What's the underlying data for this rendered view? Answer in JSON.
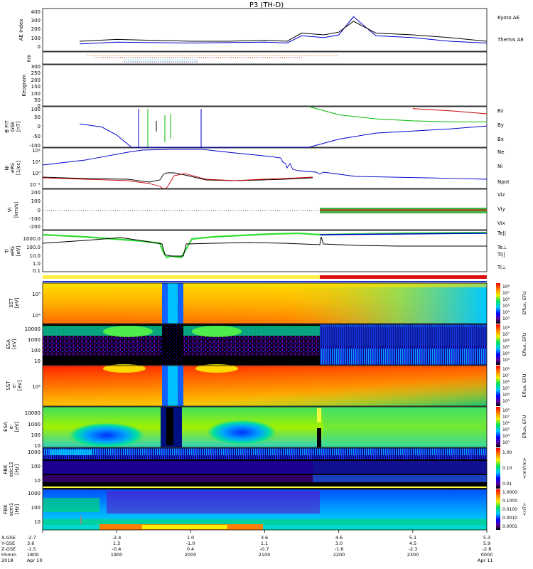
{
  "title": "P3 (TH-D)",
  "chart_data": [
    {
      "type": "line",
      "panel": "ae",
      "ylabel": "AE Index",
      "yticks": [
        "400",
        "300",
        "200",
        "100",
        "0"
      ],
      "ylim": [
        -50,
        420
      ],
      "x": [
        18.5,
        19.0,
        19.5,
        20.0,
        20.5,
        21.0,
        21.3,
        21.5,
        21.8,
        22.0,
        22.2,
        22.5,
        23.0,
        23.5,
        24.0
      ],
      "series": [
        {
          "name": "Kyoto AE",
          "color": "#0000cc",
          "values": [
            30,
            50,
            45,
            40,
            45,
            50,
            40,
            120,
            100,
            130,
            330,
            120,
            100,
            60,
            40
          ]
        },
        {
          "name": "Themis AE",
          "color": "#000000",
          "values": [
            60,
            80,
            70,
            60,
            60,
            70,
            60,
            150,
            130,
            160,
            280,
            150,
            130,
            100,
            60
          ]
        }
      ]
    },
    {
      "type": "line",
      "panel": "roi",
      "ylabel": "ROI",
      "series": [
        {
          "name": "roi-orange",
          "color": "#ff6600",
          "range": [
            18.6,
            22.0
          ]
        },
        {
          "name": "roi-red",
          "color": "#cc0000",
          "range": [
            18.7,
            21.5
          ]
        },
        {
          "name": "roi-cyan",
          "color": "#00cccc",
          "range": [
            19.1,
            20.1
          ]
        },
        {
          "name": "roi-blue",
          "color": "#000099",
          "range": [
            19.1,
            20.1
          ]
        }
      ]
    },
    {
      "type": "line",
      "panel": "keogram",
      "ylabel": "Keogram",
      "yticks": [
        "300",
        "250",
        "200",
        "150",
        "100",
        "50",
        "0"
      ],
      "ylim": [
        0,
        300
      ]
    },
    {
      "type": "line",
      "panel": "bfield",
      "ylabel": [
        "B FIT",
        "GSE",
        "[nT]"
      ],
      "yticks": [
        "100",
        "50",
        "0",
        "-50",
        "-100"
      ],
      "ylim": [
        -100,
        100
      ],
      "x": [
        18.5,
        18.8,
        19.0,
        19.2,
        19.5,
        19.9,
        20.1,
        20.5,
        21.0,
        21.3,
        21.6,
        22.0,
        22.5,
        23.0,
        23.5,
        24.0
      ],
      "series": [
        {
          "name": "Bz",
          "color": "#cc0000",
          "values": [
            null,
            null,
            null,
            null,
            null,
            null,
            null,
            null,
            null,
            null,
            null,
            null,
            null,
            90,
            80,
            65
          ]
        },
        {
          "name": "By",
          "color": "#00bb00",
          "values": [
            null,
            null,
            null,
            null,
            null,
            null,
            null,
            null,
            null,
            null,
            100,
            60,
            40,
            30,
            25,
            25
          ]
        },
        {
          "name": "Bx",
          "color": "#0000cc",
          "values": [
            15,
            0,
            -40,
            -100,
            -100,
            -100,
            -100,
            -100,
            -100,
            -100,
            -100,
            -60,
            -30,
            -20,
            -10,
            5
          ]
        }
      ]
    },
    {
      "type": "line",
      "panel": "density",
      "ylabel": [
        "Ni",
        "ePG",
        "[1/cc]"
      ],
      "yticks": [
        "10²",
        "10¹",
        "10⁰",
        "10⁻¹"
      ],
      "series": [
        {
          "name": "Ne",
          "color": "#cc0000"
        },
        {
          "name": "Ni",
          "color": "#000000"
        },
        {
          "name": "Npot",
          "color": "#0000cc"
        }
      ]
    },
    {
      "type": "line",
      "panel": "velocity",
      "ylabel": [
        "Vi",
        "[km/s]"
      ],
      "yticks": [
        "200",
        "100",
        "0",
        "-100",
        "-200"
      ],
      "ylim": [
        -300,
        300
      ],
      "series": [
        {
          "name": "Viz",
          "color": "#cc0000"
        },
        {
          "name": "Viy",
          "color": "#00bb00"
        },
        {
          "name": "Vix",
          "color": "#0000cc"
        }
      ]
    },
    {
      "type": "line",
      "panel": "temperature",
      "ylabel": [
        "Ti",
        "ePG",
        "[eV]"
      ],
      "yticks": [
        "1000.0",
        "100.0",
        "10.0",
        "1.0",
        "0.1"
      ],
      "series": [
        {
          "name": "Te||",
          "color": "#000000"
        },
        {
          "name": "Te⊥",
          "color": "#cc0000"
        },
        {
          "name": "Ti||",
          "color": "#00bb00"
        },
        {
          "name": "Ti⊥",
          "color": "#0000cc"
        }
      ]
    },
    {
      "type": "heatmap",
      "panel": "sst-ion",
      "ylabel": [
        "SST",
        "[eV]"
      ],
      "yticks": [
        "10⁵",
        "10⁴"
      ],
      "colorbar_label": "Eflux, EFU",
      "colorbar_ticks": [
        "10⁸",
        "10⁷",
        "10⁶",
        "10⁵",
        "10⁴",
        "10³"
      ]
    },
    {
      "type": "heatmap",
      "panel": "esa-ion",
      "ylabel": [
        "ESA",
        "[eV]"
      ],
      "yticks": [
        "10000",
        "1000",
        "100",
        "10"
      ],
      "colorbar_label": "Eflux, EFU",
      "colorbar_ticks": [
        "10⁸",
        "10⁷",
        "10⁶",
        "10⁵",
        "10⁴",
        "10³"
      ]
    },
    {
      "type": "heatmap",
      "panel": "sst-electron",
      "ylabel": [
        "SST",
        "e-",
        "[eV]"
      ],
      "yticks": [
        "10⁵"
      ],
      "colorbar_label": "Eflux, EFU",
      "colorbar_ticks": [
        "10⁸",
        "10⁷",
        "10⁶",
        "10⁵",
        "10⁴",
        "10³"
      ]
    },
    {
      "type": "heatmap",
      "panel": "esa-electron",
      "ylabel": [
        "ESA",
        "e-",
        "[eV]"
      ],
      "yticks": [
        "10000",
        "1000",
        "100",
        "10"
      ],
      "colorbar_label": "Eflux, EFU",
      "colorbar_ticks": [
        "10⁸",
        "10⁷",
        "10⁶",
        "10⁵",
        "10⁴",
        "10³"
      ]
    },
    {
      "type": "heatmap",
      "panel": "fbk-e",
      "ylabel": [
        "FBK",
        "edc12",
        "[Hz]"
      ],
      "yticks": [
        "1000",
        "100",
        "10"
      ],
      "colorbar_label": "<mV/m>",
      "colorbar_ticks": [
        "1.00",
        "0.10",
        "0.01"
      ]
    },
    {
      "type": "heatmap",
      "panel": "fbk-b",
      "ylabel": [
        "FBK",
        "scm1",
        "[Hz]"
      ],
      "yticks": [
        "1000",
        "100",
        "10"
      ],
      "colorbar_label": "<nT>",
      "colorbar_ticks": [
        "1.0000",
        "0.1000",
        "0.0100",
        "0.0010",
        "0.0001"
      ]
    }
  ],
  "xaxis": {
    "row_labels": [
      "X-GSE",
      "Y-GSE",
      "Z-GSE",
      "hhmm",
      "2018"
    ],
    "columns": [
      {
        "x": [
          "-2.7",
          "3.6",
          "-1.5",
          "1800",
          "Apr 10"
        ]
      },
      {
        "x": [
          "-2.4",
          "1.3",
          "-0.4",
          "1900",
          ""
        ]
      },
      {
        "x": [
          "1.0",
          "-1.0",
          "0.4",
          "2000",
          ""
        ]
      },
      {
        "x": [
          "3.6",
          "1.1",
          "-0.7",
          "2100",
          ""
        ]
      },
      {
        "x": [
          "4.6",
          "3.0",
          "-1.6",
          "2200",
          ""
        ]
      },
      {
        "x": [
          "5.1",
          "4.5",
          "-2.3",
          "2300",
          ""
        ]
      },
      {
        "x": [
          "5.3",
          "5.9",
          "-2.8",
          "0000",
          "Apr 11"
        ]
      }
    ]
  }
}
